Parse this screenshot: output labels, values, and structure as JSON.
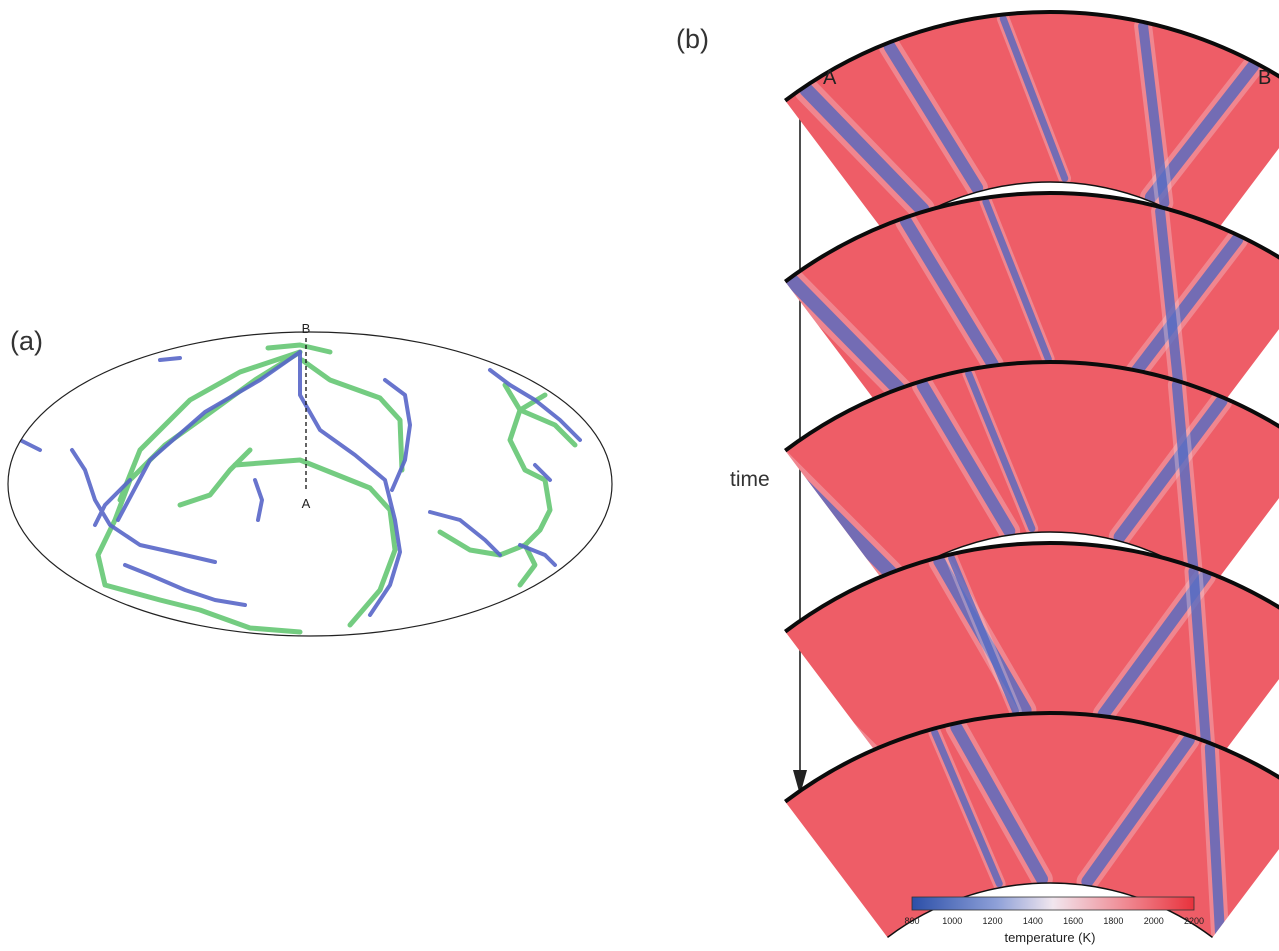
{
  "panel_a": {
    "label": "(a)",
    "section_start": "A",
    "section_end": "B"
  },
  "panel_b": {
    "label": "(b)",
    "left_end": "A",
    "right_end": "B",
    "time_label": "time",
    "snapshots": 5
  },
  "colorbar": {
    "title": "temperature (K)",
    "ticks": [
      "800",
      "1000",
      "1200",
      "1400",
      "1600",
      "1800",
      "2000",
      "2200"
    ],
    "min": 800,
    "max": 2200,
    "colors": [
      "#2c4fa8",
      "#8ea0d8",
      "#f1e6ee",
      "#f08c95",
      "#e8323c"
    ]
  },
  "colors": {
    "hot": "#ee5d67",
    "cold": "#4a63c0",
    "plate_green": "#59c16a",
    "plate_blue": "#5563c8",
    "crust": "#0b0b0b"
  }
}
